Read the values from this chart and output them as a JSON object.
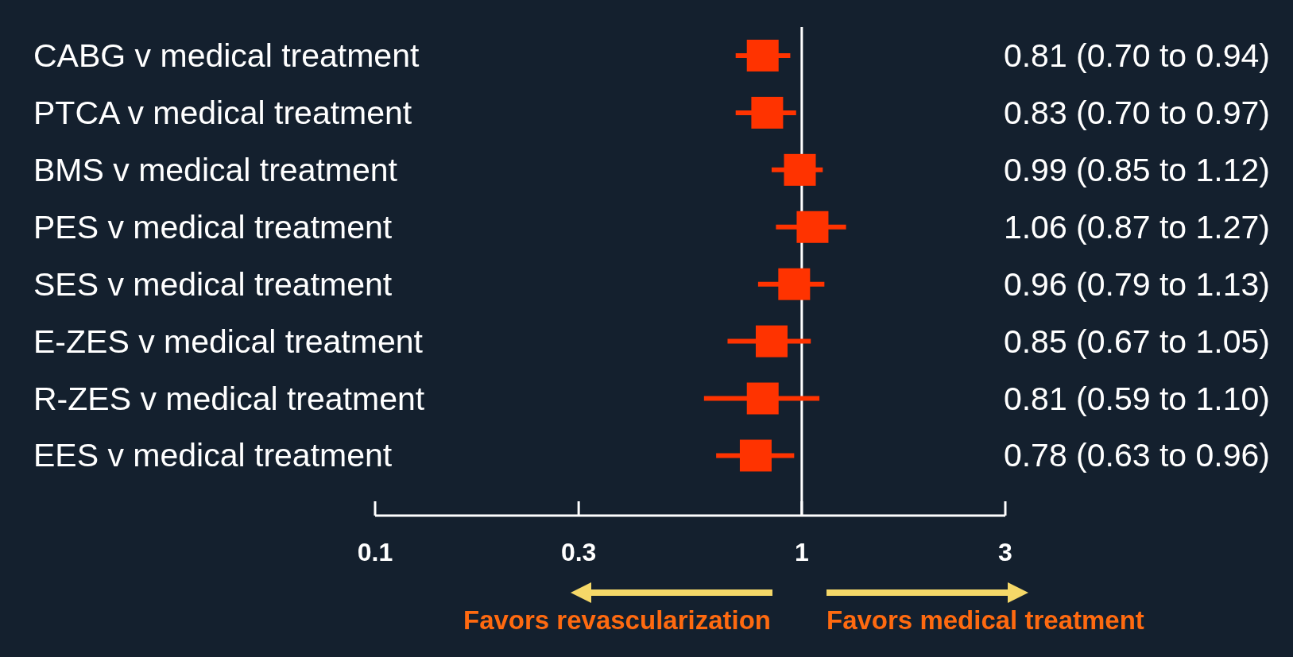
{
  "chart_data": {
    "type": "scatter",
    "orientation": "horizontal",
    "marker": "square",
    "color": "#ff3300",
    "categories": [
      "CABG v medical treatment",
      "PTCA v medical treatment",
      "BMS v medical treatment",
      "PES v medical treatment",
      "SES v medical treatment",
      "E-ZES v medical treatment",
      "R-ZES v medical treatment",
      "EES v medical treatment"
    ],
    "values": [
      0.81,
      0.83,
      0.99,
      1.06,
      0.96,
      0.85,
      0.81,
      0.78
    ],
    "errors": [
      [
        0.7,
        0.94
      ],
      [
        0.7,
        0.97
      ],
      [
        0.85,
        1.12
      ],
      [
        0.87,
        1.27
      ],
      [
        0.79,
        1.13
      ],
      [
        0.67,
        1.05
      ],
      [
        0.59,
        1.1
      ],
      [
        0.63,
        0.96
      ]
    ],
    "value_labels": [
      "0.81 (0.70 to 0.94)",
      "0.83 (0.70 to 0.97)",
      "0.99 (0.85 to 1.12)",
      "1.06 (0.87 to 1.27)",
      "0.96 (0.79 to 1.13)",
      "0.85 (0.67 to 1.05)",
      "0.81 (0.59 to 1.10)",
      "0.78 (0.63 to 0.96)"
    ],
    "log": "x",
    "xlim": [
      0.1,
      3
    ],
    "xticks": [
      0.1,
      0.3,
      1,
      3
    ],
    "grid": false,
    "ref_lines": [
      {
        "axis": "x",
        "value": 1,
        "color": "#ffffff"
      }
    ],
    "annotations": [
      "Favors revascularization",
      "Favors medical treatment"
    ]
  }
}
